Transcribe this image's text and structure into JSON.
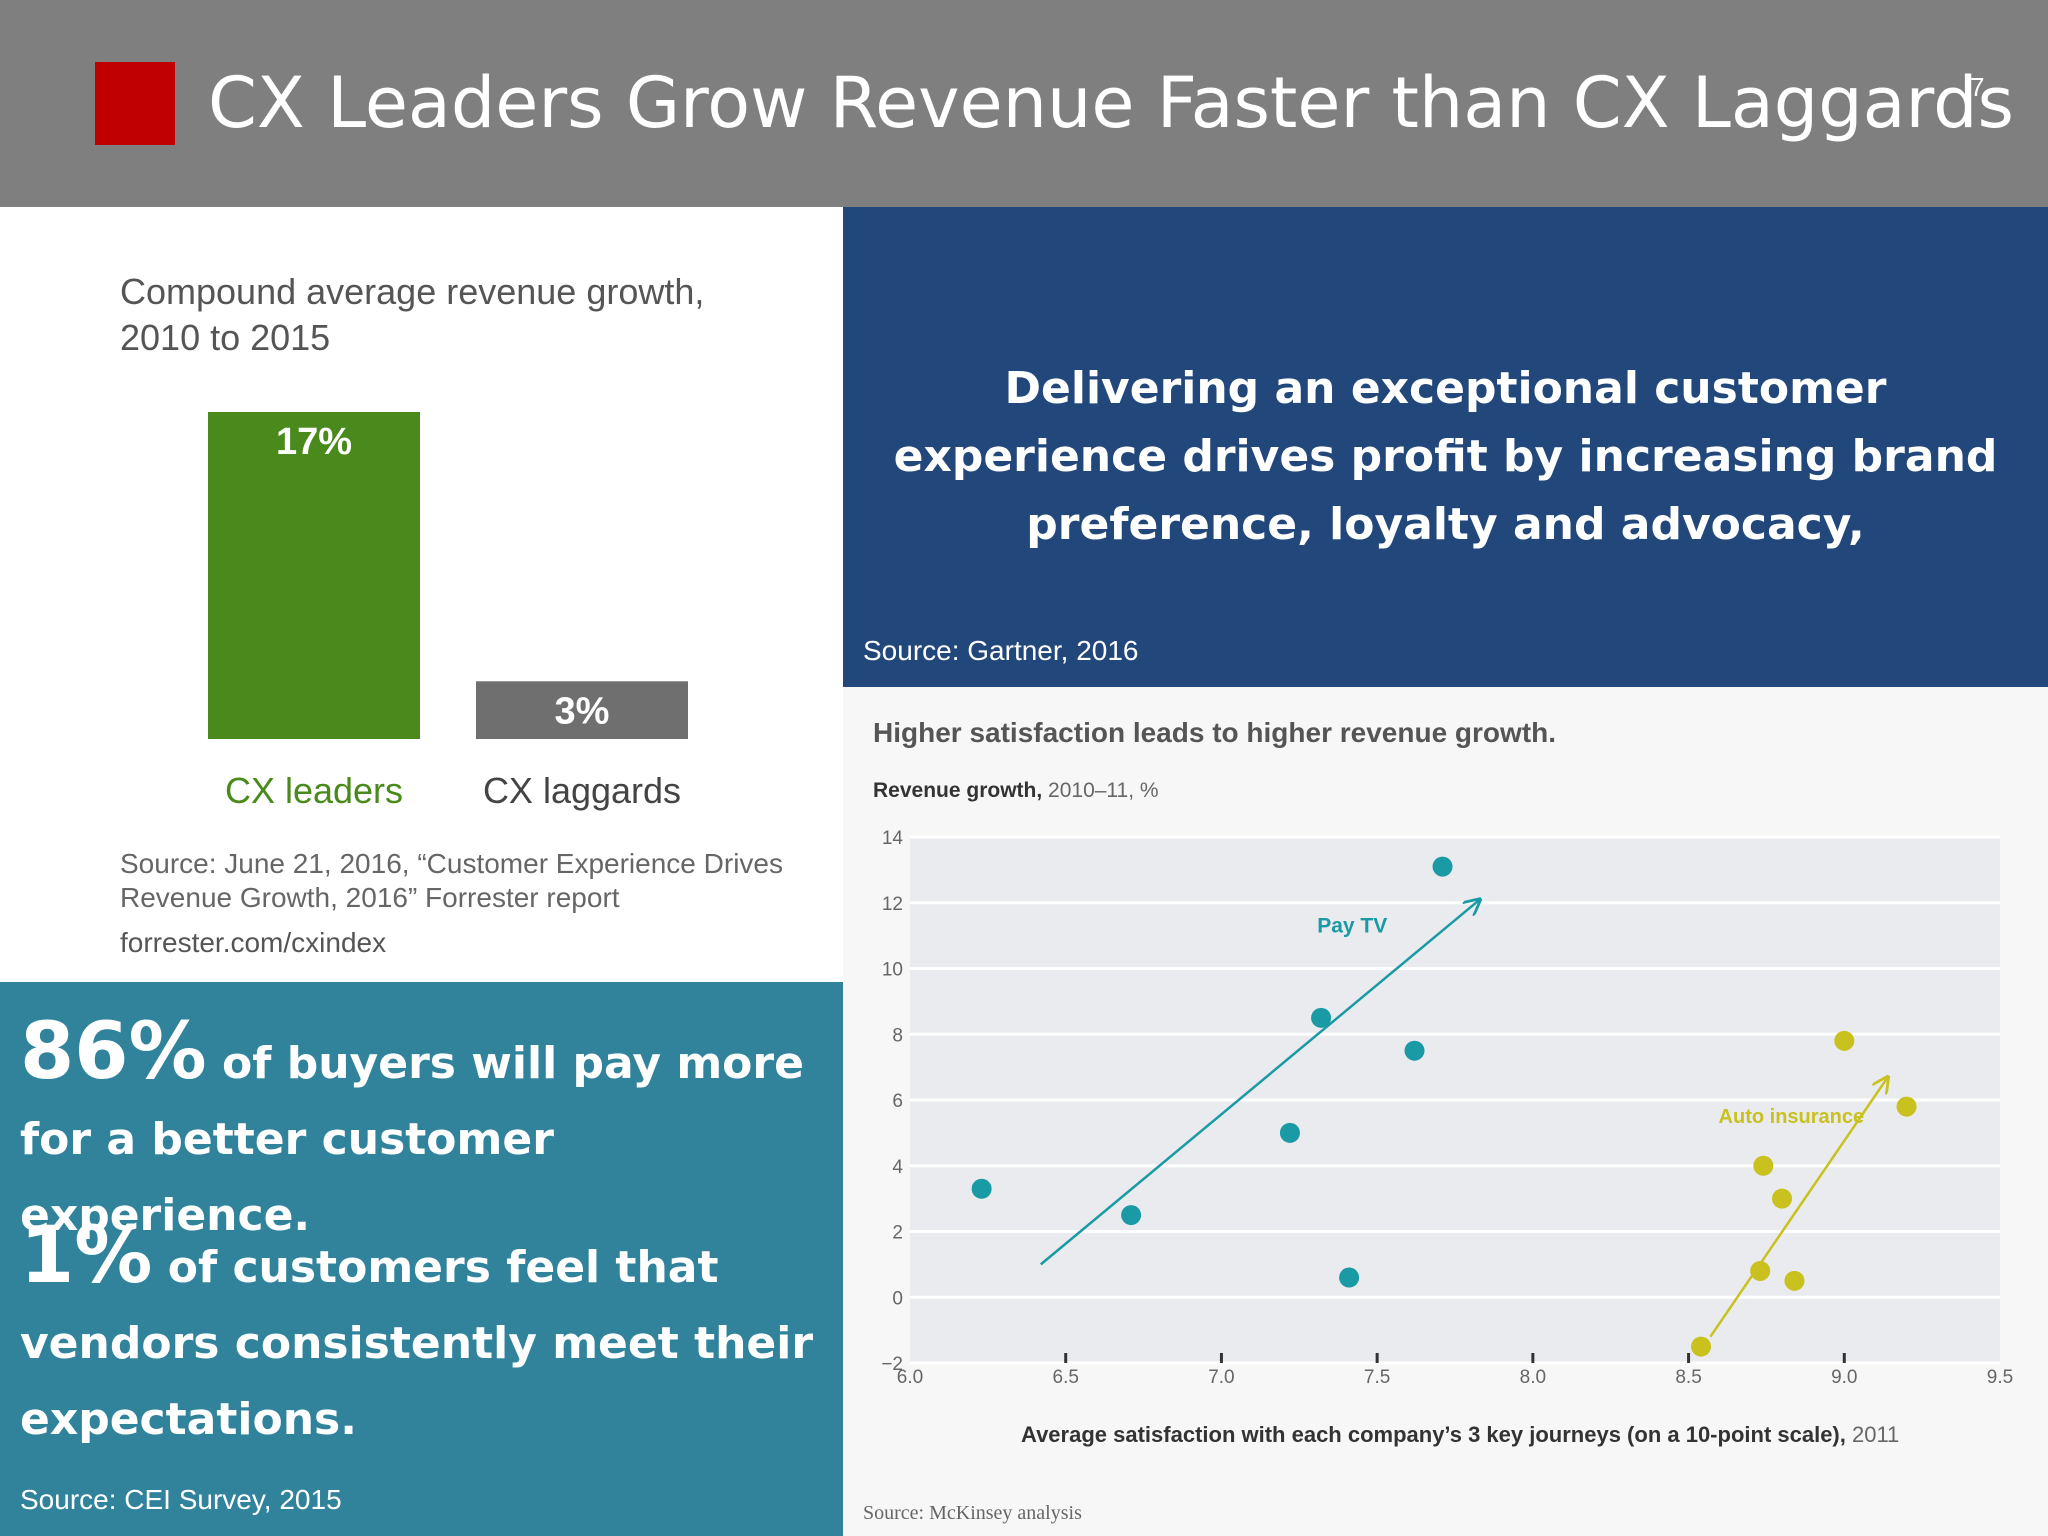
{
  "slide": {
    "title": "CX Leaders Grow Revenue Faster than CX Laggards",
    "page_number": "7",
    "accent_color": "#c00000"
  },
  "bar_panel": {
    "title": "Compound average revenue growth, 2010 to 2015",
    "source": "Source: June 21, 2016, “Customer Experience Drives Revenue Growth, 2016” Forrester report",
    "url": "forrester.com/cxindex"
  },
  "quote_panel": {
    "text": "Delivering an exceptional customer experience drives profit by increasing brand preference, loyalty and advocacy,",
    "source": "Source:  Gartner, 2016"
  },
  "stats_panel": {
    "stat1_value": "86%",
    "stat1_text": "of buyers will pay more for a better customer experience.",
    "stat2_value": "1%",
    "stat2_text": "of customers feel that vendors consistently meet their expectations.",
    "source": "Source: CEI Survey, 2015"
  },
  "scatter_panel": {
    "title": "Higher satisfaction leads to higher revenue growth.",
    "ylabel_bold": "Revenue growth,",
    "ylabel_rest": " 2010–11, %",
    "xlabel_bold": "Average satisfaction with each company’s 3 key journeys (on a 10-point scale),",
    "xlabel_rest": " 2011",
    "source": "Source: McKinsey analysis"
  },
  "chart_data": [
    {
      "type": "bar",
      "title": "Compound average revenue growth, 2010 to 2015",
      "categories": [
        "CX leaders",
        "CX laggards"
      ],
      "values": [
        17,
        3
      ],
      "value_labels": [
        "17%",
        "3%"
      ],
      "colors": [
        "#4a8a1c",
        "#6f6f6f"
      ],
      "label_colors": [
        "#4a8a1c",
        "#444444"
      ],
      "ylim": [
        0,
        17
      ]
    },
    {
      "type": "scatter",
      "title": "Higher satisfaction leads to higher revenue growth.",
      "xlabel": "Average satisfaction with each company’s 3 key journeys (on a 10-point scale), 2011",
      "ylabel": "Revenue growth, 2010–11, %",
      "xlim": [
        6.0,
        9.5
      ],
      "ylim": [
        -2,
        14
      ],
      "x_ticks": [
        "6.0",
        "6.5",
        "7.0",
        "7.5",
        "8.0",
        "8.5",
        "9.0",
        "9.5"
      ],
      "y_ticks": [
        "14",
        "12",
        "10",
        "8",
        "6",
        "4",
        "2",
        "0",
        "−2"
      ],
      "grid": true,
      "series": [
        {
          "name": "Pay TV",
          "color": "#1a9aa4",
          "points": [
            [
              6.23,
              3.3
            ],
            [
              6.71,
              2.5
            ],
            [
              7.22,
              5.0
            ],
            [
              7.32,
              8.5
            ],
            [
              7.41,
              0.6
            ],
            [
              7.62,
              7.5
            ],
            [
              7.71,
              13.1
            ]
          ],
          "trend": [
            [
              6.42,
              1.0
            ],
            [
              7.83,
              12.1
            ]
          ]
        },
        {
          "name": "Auto insurance",
          "color": "#c9c11e",
          "points": [
            [
              8.54,
              -1.5
            ],
            [
              8.73,
              0.8
            ],
            [
              8.74,
              4.0
            ],
            [
              8.8,
              3.0
            ],
            [
              8.84,
              0.5
            ],
            [
              9.0,
              7.8
            ],
            [
              9.2,
              5.8
            ]
          ],
          "trend": [
            [
              8.57,
              -1.2
            ],
            [
              9.14,
              6.7
            ]
          ]
        }
      ]
    }
  ]
}
